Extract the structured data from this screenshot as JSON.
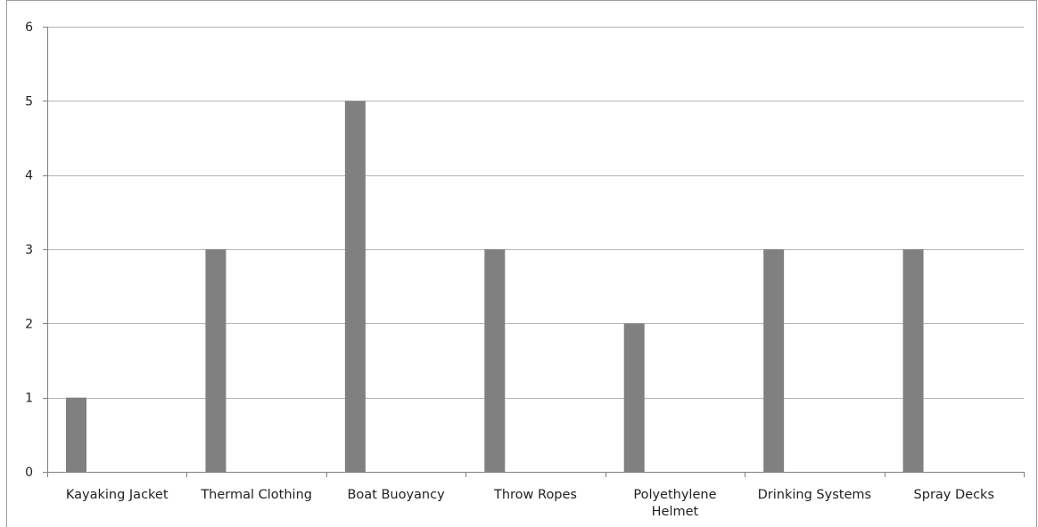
{
  "chart_data": {
    "type": "bar",
    "title": "",
    "xlabel": "",
    "ylabel": "",
    "categories": [
      [
        "Kayaking Jacket"
      ],
      [
        "Thermal Clothing"
      ],
      [
        "Boat Buoyancy"
      ],
      [
        "Throw Ropes"
      ],
      [
        "Polyethylene",
        "Helmet"
      ],
      [
        "Drinking Systems"
      ],
      [
        "Spray Decks"
      ]
    ],
    "values": [
      1,
      3,
      5,
      3,
      2,
      3,
      3
    ],
    "ylim": [
      0,
      6
    ],
    "yticks": [
      "0",
      "1",
      "2",
      "3",
      "4",
      "5",
      "6"
    ],
    "grid": true,
    "legend": "none",
    "colors": {
      "bar": "#808080",
      "grid": "#b4b4b4",
      "axis": "#7f7f7f",
      "border": "#9a9a9a"
    }
  }
}
